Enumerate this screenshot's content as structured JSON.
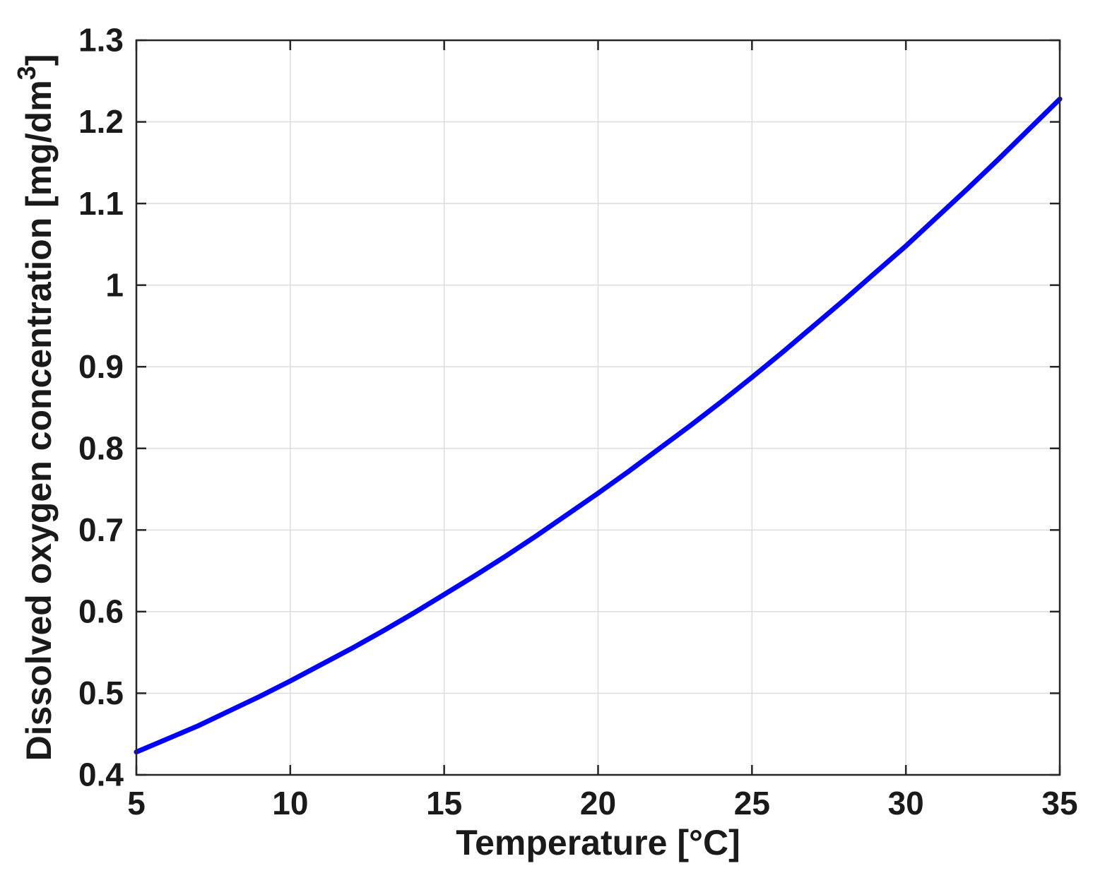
{
  "figure": {
    "background": "#ffffff"
  },
  "chart_data": {
    "type": "line",
    "title": "",
    "xlabel": "Temperature [°C]",
    "ylabel": "Dissolved oxygen concentration [mg/dm³]",
    "xlim": [
      5,
      35
    ],
    "ylim": [
      0.4,
      1.3
    ],
    "xticks": [
      5,
      10,
      15,
      20,
      25,
      30,
      35
    ],
    "xtick_labels": [
      "5",
      "10",
      "15",
      "20",
      "25",
      "30",
      "35"
    ],
    "yticks": [
      0.4,
      0.5,
      0.6,
      0.7,
      0.8,
      0.9,
      1.0,
      1.1,
      1.2,
      1.3
    ],
    "ytick_labels": [
      "0.4",
      "0.5",
      "0.6",
      "0.7",
      "0.8",
      "0.9",
      "1",
      "1.1",
      "1.2",
      "1.3"
    ],
    "grid": true,
    "legend_position": "none",
    "axis_color": "#262626",
    "grid_color": "#dcdcdc",
    "label_color": "#1a1a1a",
    "series": [
      {
        "name": "dissolved-oxygen",
        "color": "#0000ff",
        "line_width": 7,
        "x": [
          5,
          6,
          7,
          8,
          9,
          10,
          11,
          12,
          13,
          14,
          15,
          16,
          17,
          18,
          19,
          20,
          21,
          22,
          23,
          24,
          25,
          26,
          27,
          28,
          29,
          30,
          31,
          32,
          33,
          34,
          35
        ],
        "y": [
          0.428,
          0.444,
          0.46,
          0.478,
          0.496,
          0.515,
          0.535,
          0.555,
          0.576,
          0.598,
          0.621,
          0.644,
          0.668,
          0.693,
          0.719,
          0.745,
          0.772,
          0.8,
          0.828,
          0.857,
          0.887,
          0.918,
          0.95,
          0.982,
          1.015,
          1.048,
          1.083,
          1.118,
          1.154,
          1.191,
          1.228
        ]
      }
    ]
  }
}
